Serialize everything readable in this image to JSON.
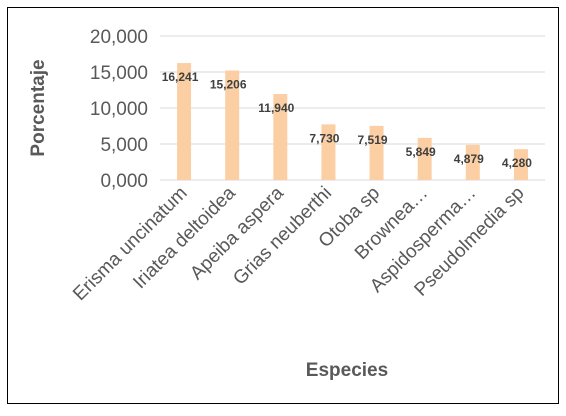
{
  "chart_data": {
    "type": "bar",
    "title": "",
    "xlabel": "Especies",
    "ylabel": "Porcentaje",
    "categories": [
      "Erisma uncinatum",
      "Iriatea deltoidea",
      "Apeiba aspera",
      "Grias neuberthi",
      "Otoba sp",
      "Brownea…",
      "Aspidosperma…",
      "Pseudolmedia sp"
    ],
    "values": [
      16.241,
      15.206,
      11.94,
      7.73,
      7.519,
      5.849,
      4.879,
      4.28
    ],
    "data_labels": [
      "16,241",
      "15,206",
      "11,940",
      "7,730",
      "7,519",
      "5,849",
      "4,879",
      "4,280"
    ],
    "ylim": [
      0,
      20
    ],
    "yticks": [
      0,
      5,
      10,
      15,
      20
    ],
    "ytick_labels": [
      "0,000",
      "5,000",
      "10,000",
      "15,000",
      "20,000"
    ],
    "grid": true,
    "legend": "none",
    "colors": {
      "bar": "#FBCFA3",
      "grid": "#D9D9D9",
      "border": "#000000",
      "tick_text": "#595959",
      "label_text": "#595959",
      "data_label_text": "#404040"
    }
  }
}
